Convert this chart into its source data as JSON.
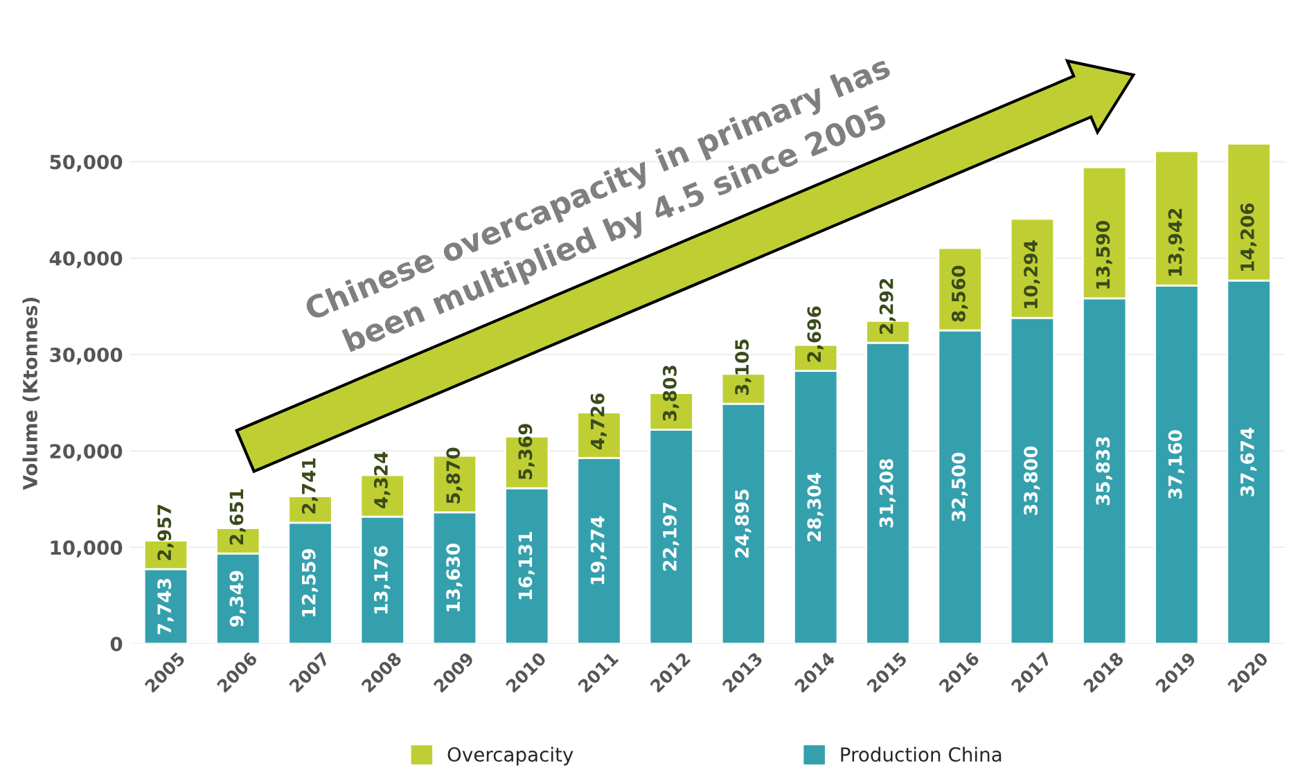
{
  "chart_data": {
    "type": "bar",
    "ylabel": "Volume (Ktonnes)",
    "categories": [
      "2005",
      "2006",
      "2007",
      "2008",
      "2009",
      "2010",
      "2011",
      "2012",
      "2013",
      "2014",
      "2015",
      "2016",
      "2017",
      "2018",
      "2019",
      "2020"
    ],
    "series": [
      {
        "name": "Production China",
        "color": "#35a0ad",
        "values": [
          7743,
          9349,
          12559,
          13176,
          13630,
          16131,
          19274,
          22197,
          24895,
          28304,
          31208,
          32500,
          33800,
          35833,
          37160,
          37674
        ],
        "value_labels": [
          "7,743",
          "9,349",
          "12,559",
          "13,176",
          "13,630",
          "16,131",
          "19,274",
          "22,197",
          "24,895",
          "28,304",
          "31,208",
          "32,500",
          "33,800",
          "35,833",
          "37,160",
          "37,674"
        ]
      },
      {
        "name": "Overcapacity",
        "color": "#bfcf33",
        "values": [
          2957,
          2651,
          2741,
          4324,
          5870,
          5369,
          4726,
          3803,
          3105,
          2696,
          2292,
          8560,
          10294,
          13590,
          13942,
          14206
        ],
        "value_labels": [
          "2,957",
          "2,651",
          "2,741",
          "4,324",
          "5,870",
          "5,369",
          "4,726",
          "3,803",
          "3,105",
          "2,696",
          "2,292",
          "8,560",
          "10,294",
          "13,590",
          "13,942",
          "14,206"
        ]
      }
    ],
    "stacked": true,
    "ylim": [
      0,
      52000
    ],
    "yticks": [
      {
        "value": 0,
        "label": "0"
      },
      {
        "value": 10000,
        "label": "10,000"
      },
      {
        "value": 20000,
        "label": "20,000"
      },
      {
        "value": 30000,
        "label": "30,000"
      },
      {
        "value": 40000,
        "label": "40,000"
      },
      {
        "value": 50000,
        "label": "50,000"
      }
    ],
    "grid": "y",
    "legend": "bottom",
    "annotations": [
      "Chinese overcapacity in primary has\nbeen multiplied by 4.5 since 2005"
    ]
  }
}
